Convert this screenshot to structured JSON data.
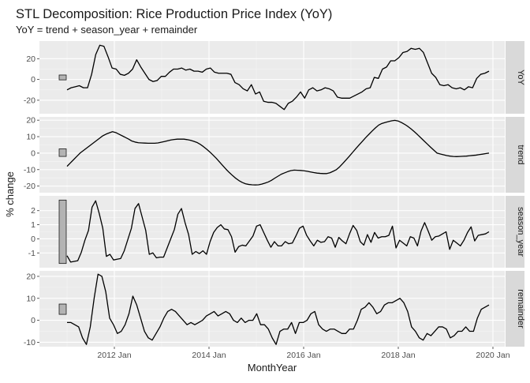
{
  "chart_data": {
    "type": "line",
    "title": "STL Decomposition: Rice Production Price Index (YoY)",
    "subtitle": "YoY = trend + season_year + remainder",
    "xlabel": "MonthYear",
    "ylabel": "% change",
    "x_start": "2011-01",
    "x_step": "month",
    "x_ticks": [
      "2012 Jan",
      "2014 Jan",
      "2016 Jan",
      "2018 Jan",
      "2020 Jan"
    ],
    "xlim": [
      "2010-06",
      "2020-04"
    ],
    "grid": true,
    "legend": "none",
    "panels": [
      {
        "name": "YoY",
        "ylim": [
          -33,
          37
        ],
        "y_ticks": [
          -20,
          0,
          20
        ],
        "range_bar": [
          -0.4,
          4.3
        ],
        "values": [
          -10,
          -8,
          -7,
          -6,
          -8,
          -8,
          5,
          24,
          33,
          32,
          22,
          11,
          10,
          5,
          4,
          6,
          10,
          19,
          12,
          6,
          0,
          -2,
          -1,
          3,
          3,
          7,
          10,
          10,
          11,
          9,
          10,
          8,
          8,
          7,
          10,
          11,
          7,
          6,
          6,
          6,
          5,
          -3,
          -5,
          -9,
          -11,
          -5,
          -14,
          -12,
          -21,
          -22,
          -22,
          -23,
          -26,
          -29,
          -23,
          -21,
          -17,
          -12,
          -18,
          -10,
          -8,
          -11,
          -10,
          -8,
          -9,
          -11,
          -17,
          -18,
          -18,
          -18,
          -16,
          -14,
          -12,
          -9,
          -8,
          2,
          1,
          10,
          12,
          18,
          18,
          21,
          26,
          27,
          30,
          29,
          30,
          26,
          16,
          6,
          2,
          -5,
          -6,
          -5,
          -8,
          -9,
          -8,
          -10,
          -7,
          -8,
          1,
          5,
          6,
          8
        ]
      },
      {
        "name": "trend",
        "ylim": [
          -24,
          22
        ],
        "y_ticks": [
          -20,
          -10,
          0,
          10,
          20
        ],
        "range_bar": [
          -2,
          2.6
        ],
        "values": [
          -8,
          -6,
          -4,
          -2,
          0,
          1.5,
          3,
          4.5,
          6,
          7.5,
          9,
          10.5,
          11.5,
          12.3,
          13,
          12.5,
          11.5,
          10.5,
          9.5,
          8.5,
          7.3,
          6.7,
          6.3,
          6.2,
          6.1,
          6,
          6,
          6,
          6.2,
          6.6,
          7,
          7.5,
          8,
          8.3,
          8.5,
          8.5,
          8.5,
          8.2,
          7.8,
          7.2,
          6.5,
          5.4,
          4,
          2.4,
          0.7,
          -1.2,
          -3.2,
          -5.4,
          -7.6,
          -9.8,
          -11.8,
          -13.6,
          -15.3,
          -16.7,
          -17.8,
          -18.6,
          -19,
          -19.2,
          -19.3,
          -19.2,
          -18.8,
          -18.2,
          -17.5,
          -16.5,
          -15.2,
          -14,
          -12.8,
          -12,
          -11.2,
          -10.6,
          -10.3,
          -10.4,
          -10.5,
          -10.7,
          -11,
          -11.4,
          -11.8,
          -12.1,
          -12.3,
          -12.4,
          -12.4,
          -11.9,
          -11,
          -10,
          -8.3,
          -6.2,
          -4,
          -1.8,
          0.5,
          2.8,
          5,
          7.2,
          9.4,
          11.4,
          13.4,
          15.3,
          17,
          18,
          18.6,
          19.1,
          19.6,
          19.9,
          19.5,
          18.6,
          17.5,
          16.2,
          14.7,
          13,
          11.2,
          9.3,
          7.4,
          5.5,
          3.6,
          1.8,
          0,
          -0.5,
          -1,
          -1.5,
          -1.8,
          -2,
          -2.1,
          -2,
          -1.9,
          -1.8,
          -1.6,
          -1.4,
          -1.2,
          -0.9,
          -0.6,
          -0.3,
          0
        ]
      },
      {
        "name": "season_year",
        "ylim": [
          -2.05,
          3.05
        ],
        "y_ticks": [
          -1,
          0,
          1,
          2
        ],
        "range_bar": [
          -1.75,
          2.75
        ],
        "values": [
          -1.2,
          -1.65,
          -1.6,
          -1.55,
          -0.95,
          -0.1,
          0.6,
          2.25,
          2.7,
          1.8,
          0.75,
          -1.25,
          -1.1,
          -1.5,
          -1.45,
          -1.4,
          -0.85,
          -0.05,
          0.75,
          2.15,
          2.5,
          1.55,
          0.6,
          -1.1,
          -1,
          -1.35,
          -1.3,
          -1.3,
          -0.65,
          0,
          0.65,
          1.75,
          2.15,
          1.15,
          0.3,
          -1.1,
          -0.9,
          -1.05,
          -0.85,
          -1.1,
          -0.2,
          0.45,
          0.8,
          1,
          0.7,
          0.65,
          0.15,
          -0.95,
          -0.55,
          -0.45,
          -0.5,
          -0.15,
          0.2,
          0.9,
          1,
          0.45,
          -0.1,
          -0.6,
          -0.2,
          -0.5,
          -0.5,
          -0.2,
          -0.35,
          -0.3,
          0.2,
          0.75,
          0.9,
          0.25,
          -0.15,
          -0.5,
          -0.1,
          -0.25,
          -0.2,
          0.15,
          0.05,
          -0.6,
          0.1,
          -0.15,
          -0.35,
          0.35,
          0.95,
          0.6,
          -0.2,
          -0.45,
          0.3,
          -0.25,
          0.45,
          0.05,
          0.15,
          0.15,
          0.25,
          0.9,
          -0.65,
          -0.1,
          -0.3,
          -0.5,
          0.15,
          0.05,
          -0.5,
          0.55,
          1.15,
          0.55,
          -0.1,
          0.15,
          0.2,
          0.35,
          0.5,
          -0.75,
          -0.1,
          -0.3,
          -0.5,
          -0.1,
          0.45,
          0.85,
          -0.15,
          0.25,
          0.3,
          0.35,
          0.5
        ]
      },
      {
        "name": "remainder",
        "ylim": [
          -12,
          22.5
        ],
        "y_ticks": [
          -10,
          0,
          10,
          20
        ],
        "range_bar": [
          2.7,
          7.4
        ],
        "values": [
          -1,
          -1,
          -2,
          -3,
          -8,
          -11,
          -3,
          10,
          21,
          20,
          13,
          1,
          -2,
          -6,
          -5,
          -2,
          3,
          11,
          7,
          1,
          -5,
          -8,
          -9,
          -6,
          -3,
          1,
          4,
          5,
          4,
          2,
          0,
          -2,
          -1,
          -2,
          -1,
          0,
          2,
          3,
          4,
          2,
          3,
          4,
          3,
          0,
          -1,
          1,
          -1,
          0,
          0,
          3,
          -2,
          -2,
          -4,
          -8,
          -11,
          -5,
          -4,
          -4,
          -1,
          -6,
          -1,
          -1,
          0,
          3,
          4,
          -2,
          -4,
          -5,
          -4,
          -4,
          -5,
          -6,
          -6,
          -4,
          -4,
          0,
          5,
          6,
          8,
          6,
          3,
          4,
          7,
          8,
          8,
          9,
          10,
          8,
          4,
          -3,
          -5,
          -8,
          -9,
          -6,
          -7,
          -5,
          -3,
          -3,
          -4,
          -8,
          -7,
          -5,
          -5,
          -3,
          -5,
          -5,
          1,
          5,
          6,
          7
        ]
      }
    ]
  }
}
